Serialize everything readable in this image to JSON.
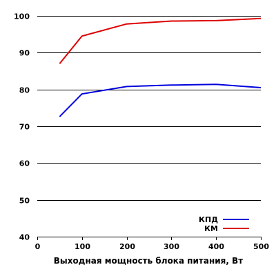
{
  "chart_data": {
    "type": "line",
    "title": "",
    "xlabel": "Выходная мощность блока питания, Вт",
    "ylabel": "",
    "x": [
      50,
      100,
      200,
      300,
      400,
      500
    ],
    "x_ticks": [
      0,
      100,
      200,
      300,
      400,
      500
    ],
    "y_ticks": [
      40,
      50,
      60,
      70,
      80,
      90,
      100
    ],
    "xlim": [
      0,
      500
    ],
    "ylim": [
      40,
      100
    ],
    "grid": "horizontal",
    "legend_position": "bottom-right",
    "series": [
      {
        "name": "КПД",
        "color": "#0000dd",
        "values": [
          72.6,
          78.8,
          80.8,
          81.2,
          81.4,
          80.5
        ]
      },
      {
        "name": "КМ",
        "color": "#dd0000",
        "values": [
          87.0,
          94.5,
          97.8,
          98.6,
          98.7,
          99.3
        ]
      }
    ]
  }
}
